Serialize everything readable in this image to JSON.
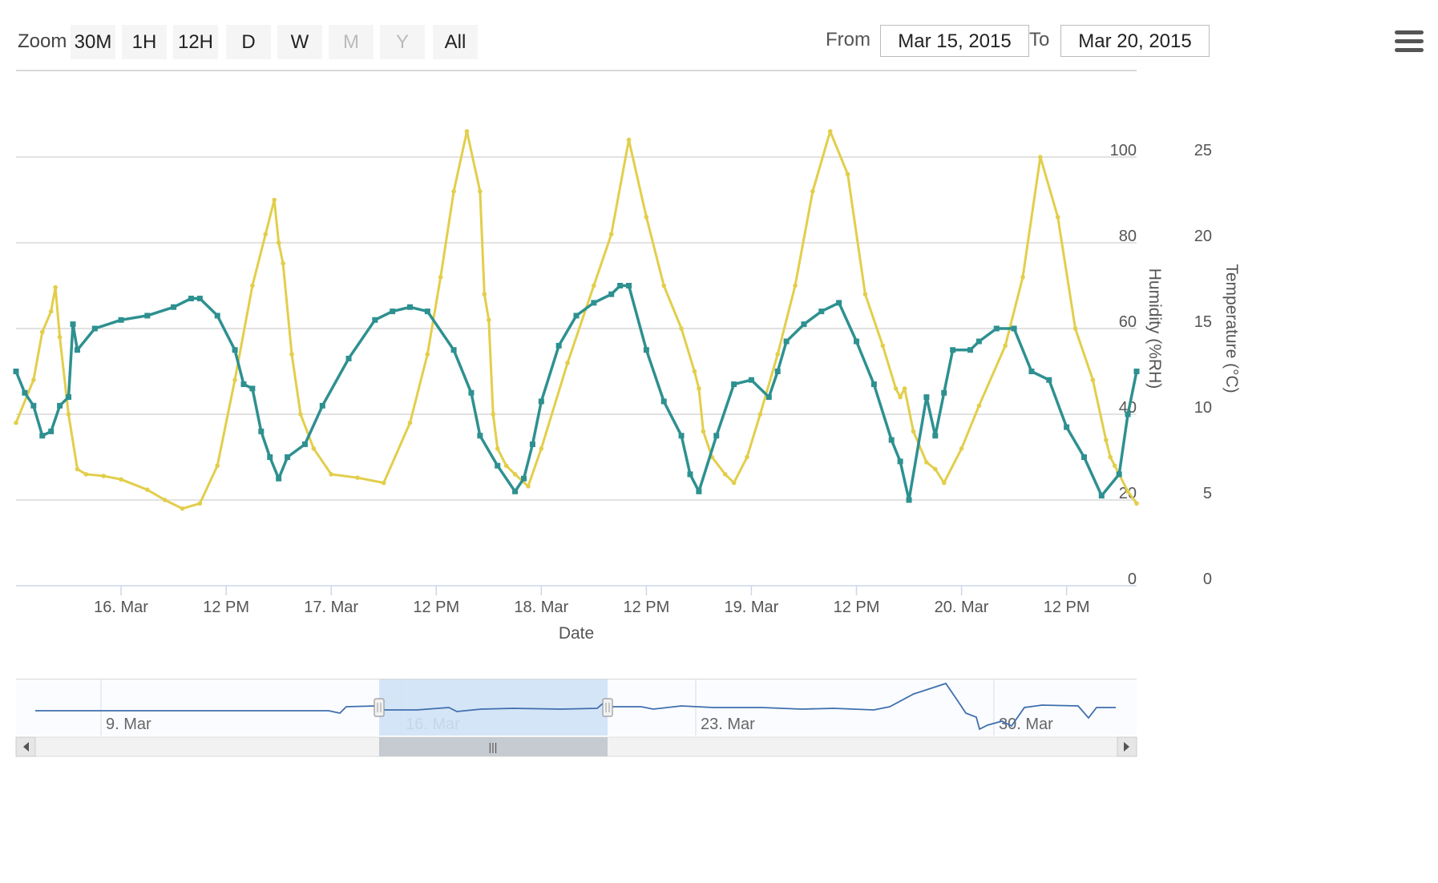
{
  "toolbar": {
    "zoom_label": "Zoom",
    "zoom_buttons": [
      {
        "label": "30M",
        "enabled": true
      },
      {
        "label": "1H",
        "enabled": true
      },
      {
        "label": "12H",
        "enabled": true
      },
      {
        "label": "D",
        "enabled": true
      },
      {
        "label": "W",
        "enabled": true
      },
      {
        "label": "M",
        "enabled": false
      },
      {
        "label": "Y",
        "enabled": false
      },
      {
        "label": "All",
        "enabled": true
      }
    ],
    "from_label": "From",
    "from_value": "Mar 15, 2015",
    "to_label": "To",
    "to_value": "Mar 20, 2015",
    "menu_icon": "hamburger-menu-icon"
  },
  "colors": {
    "temperature": "#e2ce4b",
    "humidity": "#2e9090",
    "grid": "#d8d8d8",
    "navigator_line": "#3f6fae",
    "navigator_mask": "#cfe2f6"
  },
  "chart_data": {
    "type": "line",
    "xlabel": "Date",
    "x_range": [
      "2015-03-15 12:00",
      "2015-03-20 20:00"
    ],
    "x_ticks": [
      "16. Mar",
      "12 PM",
      "17. Mar",
      "12 PM",
      "18. Mar",
      "12 PM",
      "19. Mar",
      "12 PM",
      "20. Mar",
      "12 PM"
    ],
    "y_axes": [
      {
        "label": "Humidity (%RH)",
        "range": [
          0,
          100
        ],
        "ticks": [
          "0",
          "20",
          "40",
          "60",
          "80",
          "100"
        ]
      },
      {
        "label": "Temperature (°C)",
        "range": [
          0,
          25
        ],
        "ticks": [
          "0",
          "5",
          "10",
          "15",
          "20",
          "25"
        ]
      }
    ],
    "grid": true,
    "series": [
      {
        "name": "Temperature",
        "axis": "Temperature (°C)",
        "x": [
          "2015-03-15 12:00",
          "2015-03-15 14:00",
          "2015-03-15 15:00",
          "2015-03-15 16:00",
          "2015-03-15 16:30",
          "2015-03-15 17:00",
          "2015-03-15 18:00",
          "2015-03-15 19:00",
          "2015-03-15 20:00",
          "2015-03-15 22:00",
          "2015-03-16 00:00",
          "2015-03-16 03:00",
          "2015-03-16 05:00",
          "2015-03-16 07:00",
          "2015-03-16 09:00",
          "2015-03-16 11:00",
          "2015-03-16 13:00",
          "2015-03-16 15:00",
          "2015-03-16 16:30",
          "2015-03-16 17:30",
          "2015-03-16 18:00",
          "2015-03-16 18:30",
          "2015-03-16 19:30",
          "2015-03-16 20:30",
          "2015-03-16 22:00",
          "2015-03-17 00:00",
          "2015-03-17 03:00",
          "2015-03-17 06:00",
          "2015-03-17 09:00",
          "2015-03-17 11:00",
          "2015-03-17 12:30",
          "2015-03-17 14:00",
          "2015-03-17 15:30",
          "2015-03-17 17:00",
          "2015-03-17 17:30",
          "2015-03-17 18:00",
          "2015-03-17 18:30",
          "2015-03-17 19:00",
          "2015-03-17 20:00",
          "2015-03-17 21:00",
          "2015-03-17 22:30",
          "2015-03-18 00:00",
          "2015-03-18 03:00",
          "2015-03-18 06:00",
          "2015-03-18 08:00",
          "2015-03-18 10:00",
          "2015-03-18 12:00",
          "2015-03-18 14:00",
          "2015-03-18 16:00",
          "2015-03-18 17:30",
          "2015-03-18 18:00",
          "2015-03-18 18:30",
          "2015-03-18 19:30",
          "2015-03-18 21:00",
          "2015-03-18 22:00",
          "2015-03-18 23:30",
          "2015-03-19 01:00",
          "2015-03-19 03:00",
          "2015-03-19 05:00",
          "2015-03-19 07:00",
          "2015-03-19 09:00",
          "2015-03-19 11:00",
          "2015-03-19 13:00",
          "2015-03-19 15:00",
          "2015-03-19 16:30",
          "2015-03-19 17:00",
          "2015-03-19 17:30",
          "2015-03-19 18:30",
          "2015-03-19 20:00",
          "2015-03-19 21:00",
          "2015-03-19 22:00",
          "2015-03-20 00:00",
          "2015-03-20 02:00",
          "2015-03-20 05:00",
          "2015-03-20 07:00",
          "2015-03-20 09:00",
          "2015-03-20 11:00",
          "2015-03-20 13:00",
          "2015-03-20 15:00",
          "2015-03-20 16:30",
          "2015-03-20 17:00",
          "2015-03-20 17:30",
          "2015-03-20 18:00",
          "2015-03-20 19:00",
          "2015-03-20 20:00"
        ],
        "values": [
          9.5,
          12.0,
          14.8,
          16.0,
          17.4,
          14.5,
          10.0,
          6.8,
          6.5,
          6.4,
          6.2,
          5.6,
          5.0,
          4.5,
          4.8,
          7.0,
          12.0,
          17.5,
          20.5,
          22.5,
          20.0,
          18.8,
          13.5,
          10.0,
          8.0,
          6.5,
          6.3,
          6.0,
          9.5,
          13.5,
          18.0,
          23.0,
          26.5,
          23.0,
          17.0,
          15.5,
          10.0,
          8.0,
          7.0,
          6.5,
          5.8,
          8.0,
          13.0,
          17.5,
          20.5,
          26.0,
          21.5,
          17.5,
          15.0,
          12.5,
          11.5,
          9.0,
          7.5,
          6.5,
          6.0,
          7.5,
          10.0,
          13.5,
          17.5,
          23.0,
          26.5,
          24.0,
          17.0,
          14.0,
          11.5,
          11.0,
          11.5,
          9.0,
          7.2,
          6.8,
          6.0,
          8.0,
          10.5,
          14.0,
          18.0,
          25.0,
          21.5,
          15.0,
          12.0,
          8.5,
          7.5,
          7.0,
          6.5,
          5.5,
          4.8
        ]
      },
      {
        "name": "Humidity",
        "axis": "Humidity (%RH)",
        "x": [
          "2015-03-15 12:00",
          "2015-03-15 13:00",
          "2015-03-15 14:00",
          "2015-03-15 15:00",
          "2015-03-15 16:00",
          "2015-03-15 17:00",
          "2015-03-15 18:00",
          "2015-03-15 18:30",
          "2015-03-15 19:00",
          "2015-03-15 21:00",
          "2015-03-16 00:00",
          "2015-03-16 03:00",
          "2015-03-16 06:00",
          "2015-03-16 08:00",
          "2015-03-16 09:00",
          "2015-03-16 11:00",
          "2015-03-16 13:00",
          "2015-03-16 14:00",
          "2015-03-16 15:00",
          "2015-03-16 16:00",
          "2015-03-16 17:00",
          "2015-03-16 18:00",
          "2015-03-16 19:00",
          "2015-03-16 21:00",
          "2015-03-16 23:00",
          "2015-03-17 02:00",
          "2015-03-17 05:00",
          "2015-03-17 07:00",
          "2015-03-17 09:00",
          "2015-03-17 11:00",
          "2015-03-17 14:00",
          "2015-03-17 16:00",
          "2015-03-17 17:00",
          "2015-03-17 19:00",
          "2015-03-17 21:00",
          "2015-03-17 22:00",
          "2015-03-17 23:00",
          "2015-03-18 00:00",
          "2015-03-18 02:00",
          "2015-03-18 04:00",
          "2015-03-18 06:00",
          "2015-03-18 08:00",
          "2015-03-18 09:00",
          "2015-03-18 10:00",
          "2015-03-18 12:00",
          "2015-03-18 14:00",
          "2015-03-18 16:00",
          "2015-03-18 17:00",
          "2015-03-18 18:00",
          "2015-03-18 20:00",
          "2015-03-18 22:00",
          "2015-03-19 00:00",
          "2015-03-19 02:00",
          "2015-03-19 03:00",
          "2015-03-19 04:00",
          "2015-03-19 06:00",
          "2015-03-19 08:00",
          "2015-03-19 10:00",
          "2015-03-19 12:00",
          "2015-03-19 14:00",
          "2015-03-19 16:00",
          "2015-03-19 17:00",
          "2015-03-19 18:00",
          "2015-03-19 20:00",
          "2015-03-19 21:00",
          "2015-03-19 22:00",
          "2015-03-19 23:00",
          "2015-03-20 01:00",
          "2015-03-20 02:00",
          "2015-03-20 04:00",
          "2015-03-20 06:00",
          "2015-03-20 08:00",
          "2015-03-20 10:00",
          "2015-03-20 12:00",
          "2015-03-20 14:00",
          "2015-03-20 16:00",
          "2015-03-20 18:00",
          "2015-03-20 19:00",
          "2015-03-20 20:00"
        ],
        "values": [
          50.0,
          45.0,
          42.0,
          35.0,
          36.0,
          42.0,
          44.0,
          61.0,
          55.0,
          60.0,
          62.0,
          63.0,
          65.0,
          67.0,
          67.0,
          63.0,
          55.0,
          47.0,
          46.0,
          36.0,
          30.0,
          25.0,
          30.0,
          33.0,
          42.0,
          53.0,
          62.0,
          64.0,
          65.0,
          64.0,
          55.0,
          45.0,
          35.0,
          28.0,
          22.0,
          25.0,
          33.0,
          43.0,
          56.0,
          63.0,
          66.0,
          68.0,
          70.0,
          70.0,
          55.0,
          43.0,
          35.0,
          26.0,
          22.0,
          35.0,
          47.0,
          48.0,
          44.0,
          50.0,
          57.0,
          61.0,
          64.0,
          66.0,
          57.0,
          47.0,
          34.0,
          29.0,
          20.0,
          44.0,
          35.0,
          45.0,
          55.0,
          55.0,
          57.0,
          60.0,
          60.0,
          50.0,
          48.0,
          37.0,
          30.0,
          21.0,
          26.0,
          40.0,
          50.0
        ]
      }
    ],
    "navigator": {
      "x_ticks": [
        "9. Mar",
        "16. Mar",
        "23. Mar",
        "30. Mar"
      ],
      "selected_range": [
        "2015-03-15 12:00",
        "2015-03-20 20:00"
      ]
    }
  }
}
